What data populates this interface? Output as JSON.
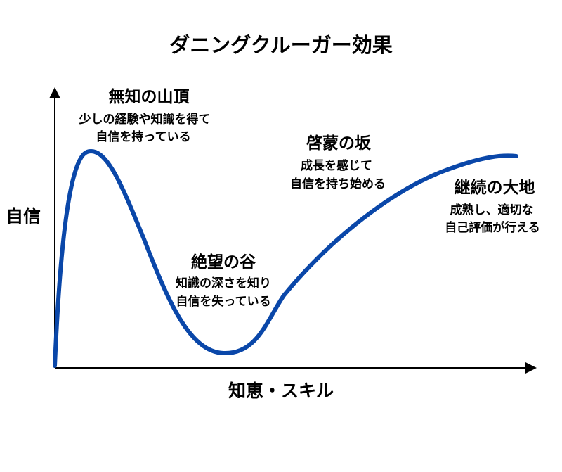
{
  "title": "ダニングクルーガー効果",
  "y_axis_label": "自信",
  "x_axis_label": "知恵・スキル",
  "colors": {
    "curve": "#0a47a9",
    "axis": "#000000",
    "background": "#ffffff"
  },
  "stages": [
    {
      "heading": "無知の山頂",
      "lines": [
        "少しの経験や知識を得て",
        "自信を持っている"
      ]
    },
    {
      "heading": "絶望の谷",
      "lines": [
        "知識の深さを知り",
        "自信を失っている"
      ]
    },
    {
      "heading": "啓蒙の坂",
      "lines": [
        "成長を感じて",
        "自信を持ち始める"
      ]
    },
    {
      "heading": "継続の大地",
      "lines": [
        "成熟し、適切な",
        "自己評価が行える"
      ]
    }
  ]
}
